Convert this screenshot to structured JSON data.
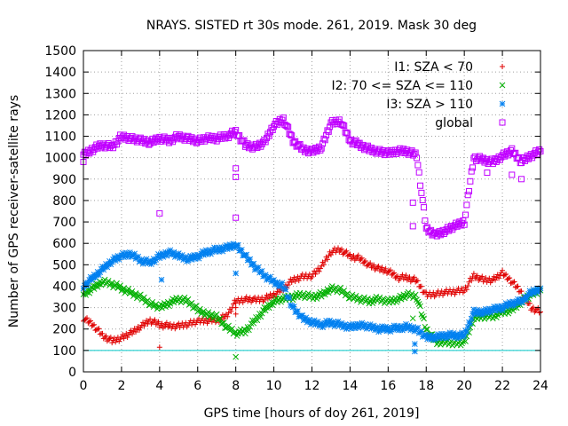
{
  "chart_data": {
    "type": "scatter",
    "title": "NRAYS. SISTED rt 30s mode. 261, 2019. Mask 30 deg",
    "xlabel": "GPS time [hours of doy 261, 2019]",
    "ylabel": "Number of GPS receiver-satellite rays",
    "xlim": [
      0,
      24
    ],
    "ylim": [
      0,
      1500
    ],
    "xticks": [
      "0",
      "2",
      "4",
      "6",
      "8",
      "10",
      "12",
      "14",
      "16",
      "18",
      "20",
      "22",
      "24"
    ],
    "yticks": [
      "0",
      "100",
      "200",
      "300",
      "400",
      "500",
      "600",
      "700",
      "800",
      "900",
      "1000",
      "1100",
      "1200",
      "1300",
      "1400",
      "1500"
    ],
    "grid": true,
    "legend_position": "top-right",
    "threshold_line": {
      "y": 100,
      "color": "#00c8c8"
    },
    "series": [
      {
        "name": "I1: SZA < 70",
        "color": "#e00000",
        "marker": "+",
        "points": [
          [
            0,
            250
          ],
          [
            0.5,
            220
          ],
          [
            1,
            170
          ],
          [
            1.5,
            145
          ],
          [
            2,
            160
          ],
          [
            2.5,
            180
          ],
          [
            3,
            210
          ],
          [
            3.5,
            240
          ],
          [
            4,
            220
          ],
          [
            4.5,
            215
          ],
          [
            5,
            215
          ],
          [
            5.5,
            225
          ],
          [
            6,
            235
          ],
          [
            6.5,
            240
          ],
          [
            7,
            240
          ],
          [
            7.5,
            260
          ],
          [
            8,
            330
          ],
          [
            8.5,
            340
          ],
          [
            9,
            335
          ],
          [
            9.5,
            340
          ],
          [
            10,
            360
          ],
          [
            10.5,
            390
          ],
          [
            11,
            430
          ],
          [
            11.5,
            445
          ],
          [
            12,
            450
          ],
          [
            12.5,
            490
          ],
          [
            13,
            560
          ],
          [
            13.5,
            570
          ],
          [
            14,
            540
          ],
          [
            14.5,
            530
          ],
          [
            15,
            500
          ],
          [
            15.5,
            480
          ],
          [
            16,
            470
          ],
          [
            16.5,
            440
          ],
          [
            17,
            440
          ],
          [
            17.5,
            425
          ],
          [
            18,
            360
          ],
          [
            18.5,
            365
          ],
          [
            19,
            370
          ],
          [
            19.5,
            375
          ],
          [
            20,
            380
          ],
          [
            20.5,
            450
          ],
          [
            21,
            430
          ],
          [
            21.5,
            430
          ],
          [
            22,
            460
          ],
          [
            22.5,
            420
          ],
          [
            23,
            370
          ],
          [
            23.5,
            300
          ],
          [
            24,
            280
          ]
        ],
        "outliers": [
          [
            4,
            115
          ],
          [
            8,
            300
          ],
          [
            8,
            270
          ]
        ]
      },
      {
        "name": "I2: 70 <= SZA <= 110",
        "color": "#00b000",
        "marker": "x",
        "points": [
          [
            0,
            360
          ],
          [
            0.5,
            390
          ],
          [
            1,
            420
          ],
          [
            1.5,
            410
          ],
          [
            2,
            390
          ],
          [
            2.5,
            370
          ],
          [
            3,
            350
          ],
          [
            3.5,
            320
          ],
          [
            4,
            300
          ],
          [
            4.5,
            320
          ],
          [
            5,
            340
          ],
          [
            5.5,
            330
          ],
          [
            6,
            290
          ],
          [
            6.5,
            270
          ],
          [
            7,
            255
          ],
          [
            7.5,
            210
          ],
          [
            8,
            180
          ],
          [
            8.5,
            190
          ],
          [
            9,
            240
          ],
          [
            9.5,
            290
          ],
          [
            10,
            330
          ],
          [
            10.5,
            340
          ],
          [
            11,
            350
          ],
          [
            11.5,
            360
          ],
          [
            12,
            350
          ],
          [
            12.5,
            360
          ],
          [
            13,
            390
          ],
          [
            13.5,
            380
          ],
          [
            14,
            350
          ],
          [
            14.5,
            340
          ],
          [
            15,
            330
          ],
          [
            15.5,
            340
          ],
          [
            16,
            330
          ],
          [
            16.5,
            340
          ],
          [
            17,
            360
          ],
          [
            17.5,
            350
          ],
          [
            18,
            200
          ],
          [
            18.5,
            140
          ],
          [
            19,
            140
          ],
          [
            19.5,
            135
          ],
          [
            20,
            135
          ],
          [
            20.5,
            250
          ],
          [
            21,
            260
          ],
          [
            21.5,
            260
          ],
          [
            22,
            280
          ],
          [
            22.5,
            290
          ],
          [
            23,
            330
          ],
          [
            23.5,
            360
          ],
          [
            24,
            380
          ]
        ],
        "outliers": [
          [
            8,
            70
          ],
          [
            17.3,
            250
          ]
        ]
      },
      {
        "name": "I3: SZA > 110",
        "color": "#0080f0",
        "marker": "*",
        "points": [
          [
            0,
            400
          ],
          [
            0.5,
            440
          ],
          [
            1,
            480
          ],
          [
            1.5,
            520
          ],
          [
            2,
            540
          ],
          [
            2.5,
            550
          ],
          [
            3,
            520
          ],
          [
            3.5,
            510
          ],
          [
            4,
            540
          ],
          [
            4.5,
            560
          ],
          [
            5,
            540
          ],
          [
            5.5,
            525
          ],
          [
            6,
            540
          ],
          [
            6.5,
            560
          ],
          [
            7,
            570
          ],
          [
            7.5,
            580
          ],
          [
            8,
            595
          ],
          [
            8.5,
            540
          ],
          [
            9,
            490
          ],
          [
            9.5,
            450
          ],
          [
            10,
            420
          ],
          [
            10.5,
            400
          ],
          [
            11,
            300
          ],
          [
            11.5,
            250
          ],
          [
            12,
            230
          ],
          [
            12.5,
            220
          ],
          [
            13,
            230
          ],
          [
            13.5,
            220
          ],
          [
            14,
            210
          ],
          [
            14.5,
            220
          ],
          [
            15,
            210
          ],
          [
            15.5,
            200
          ],
          [
            16,
            200
          ],
          [
            16.5,
            205
          ],
          [
            17,
            210
          ],
          [
            17.5,
            200
          ],
          [
            18,
            160
          ],
          [
            18.5,
            160
          ],
          [
            19,
            170
          ],
          [
            19.5,
            170
          ],
          [
            20,
            170
          ],
          [
            20.5,
            280
          ],
          [
            21,
            280
          ],
          [
            21.5,
            290
          ],
          [
            22,
            300
          ],
          [
            22.5,
            320
          ],
          [
            23,
            330
          ],
          [
            23.5,
            370
          ],
          [
            24,
            390
          ]
        ],
        "outliers": [
          [
            4.1,
            430
          ],
          [
            8,
            460
          ],
          [
            17.4,
            95
          ],
          [
            17.4,
            130
          ]
        ]
      },
      {
        "name": "global",
        "color": "#c000ff",
        "marker": "square",
        "points": [
          [
            0,
            1010
          ],
          [
            0.5,
            1040
          ],
          [
            1,
            1060
          ],
          [
            1.5,
            1050
          ],
          [
            2,
            1100
          ],
          [
            2.5,
            1090
          ],
          [
            3,
            1080
          ],
          [
            3.5,
            1070
          ],
          [
            4,
            1090
          ],
          [
            4.5,
            1080
          ],
          [
            5,
            1100
          ],
          [
            5.5,
            1090
          ],
          [
            6,
            1080
          ],
          [
            6.5,
            1090
          ],
          [
            7,
            1090
          ],
          [
            7.5,
            1100
          ],
          [
            8,
            1120
          ],
          [
            8.5,
            1060
          ],
          [
            9,
            1050
          ],
          [
            9.5,
            1070
          ],
          [
            10,
            1150
          ],
          [
            10.5,
            1180
          ],
          [
            11,
            1080
          ],
          [
            11.5,
            1040
          ],
          [
            12,
            1030
          ],
          [
            12.5,
            1050
          ],
          [
            13,
            1160
          ],
          [
            13.5,
            1170
          ],
          [
            14,
            1080
          ],
          [
            14.5,
            1060
          ],
          [
            15,
            1040
          ],
          [
            15.5,
            1030
          ],
          [
            16,
            1020
          ],
          [
            16.5,
            1030
          ],
          [
            17,
            1030
          ],
          [
            17.5,
            1010
          ],
          [
            18,
            670
          ],
          [
            18.5,
            640
          ],
          [
            19,
            660
          ],
          [
            19.5,
            680
          ],
          [
            20,
            700
          ],
          [
            20.5,
            1000
          ],
          [
            21,
            990
          ],
          [
            21.5,
            980
          ],
          [
            22,
            1010
          ],
          [
            22.5,
            1030
          ],
          [
            23,
            980
          ],
          [
            23.5,
            1010
          ],
          [
            24,
            1030
          ]
        ],
        "outliers": [
          [
            4,
            740
          ],
          [
            8,
            720
          ],
          [
            8,
            910
          ],
          [
            8,
            950
          ],
          [
            17.3,
            790
          ],
          [
            17.3,
            680
          ],
          [
            21.2,
            930
          ],
          [
            22.5,
            920
          ],
          [
            23,
            900
          ],
          [
            0,
            980
          ]
        ]
      }
    ]
  }
}
